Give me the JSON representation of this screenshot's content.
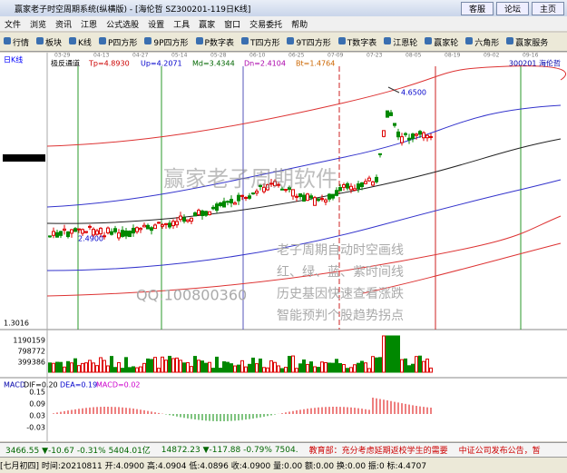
{
  "window": {
    "title": "赢家老子时空周期系统(纵横版) - [海伦哲 SZ300201-119日K线]",
    "buttons": [
      "客服",
      "论坛",
      "主页"
    ]
  },
  "menu": [
    "文件",
    "浏览",
    "资讯",
    "江恩",
    "公式选股",
    "设置",
    "工具",
    "赢家",
    "窗口",
    "交易委托",
    "帮助"
  ],
  "toolbar": [
    "行情",
    "板块",
    "K线",
    "P四方形",
    "9P四方形",
    "P数字表",
    "T四方形",
    "9T四方形",
    "T数字表",
    "江恩轮",
    "赢家轮",
    "六角形",
    "赢家服务"
  ],
  "chart": {
    "period": "日K线",
    "indicator": "极反通道",
    "params": [
      "Tp=4.8930",
      "Up=4.2071",
      "Md=3.4344",
      "Dn=2.4104",
      "Bt=1.4764"
    ],
    "stock": "300201 海伦哲",
    "dates": [
      "03-29",
      "04-13",
      "04-27",
      "05-14",
      "05-28",
      "06-10",
      "06-25",
      "07-09",
      "07-23",
      "08-05",
      "08-19",
      "09-02",
      "09-16"
    ],
    "high_label": "4.6500",
    "low_label": "2.4900",
    "bottom_label": "1.3016",
    "watermark": "赢家老子周期软件",
    "slogans": [
      "老子周期自动时空画线",
      "红、绿、蓝、紫时间线",
      "历史基因快速查看涨跌",
      "智能预判个股趋势拐点"
    ],
    "qq": "QQ:100800360"
  },
  "volume": {
    "axis": [
      "1190159",
      "798772",
      "399386"
    ]
  },
  "macd": {
    "name": "MACD",
    "params": [
      "DIF=0.20",
      "DEA=0.19",
      "MACD=0.02"
    ],
    "axis": [
      "0.15",
      "0.09",
      "0.03",
      "-0.03"
    ]
  },
  "ticker": [
    "3466.55 ▼-10.67 -0.31% 5404.01亿",
    "14872.23 ▼-117.88 -0.79% 7504.",
    "教育部：充分考虑延期返校学生的需要",
    "中证公司发布公告，暂"
  ],
  "status": "[七月初四] 时间:20210811 开:4.0900 高:4.0904 低:4.0896 收:4.0900 量:0.00 额:0.00 换:0.00 振:0 标:4.4707"
}
